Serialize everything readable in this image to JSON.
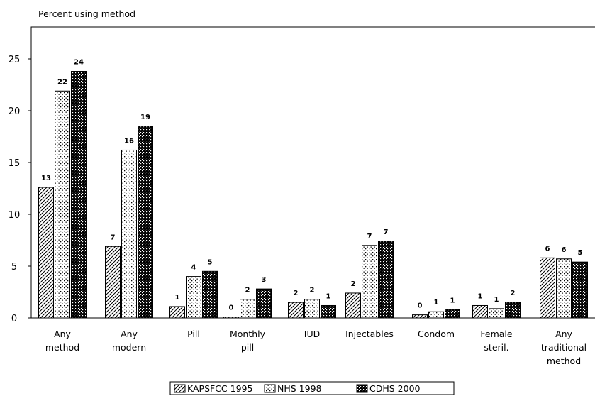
{
  "chart_data": {
    "type": "bar",
    "ylabel": "Percent using method",
    "ylim": [
      0,
      27
    ],
    "yticks": [
      0,
      5,
      10,
      15,
      20,
      25
    ],
    "grid": false,
    "legend_position": "bottom-center",
    "categories": [
      [
        "Any",
        "method"
      ],
      [
        "Any",
        "modern"
      ],
      [
        "Pill"
      ],
      [
        "Monthly",
        "pill"
      ],
      [
        "IUD"
      ],
      [
        "Injectables"
      ],
      [
        "Condom"
      ],
      [
        "Female",
        "steril."
      ],
      [
        "Any",
        "traditional",
        "method"
      ]
    ],
    "series": [
      {
        "name": "KAPSFCC 1995",
        "pattern": "diagonal-hatch",
        "values": [
          12.6,
          6.9,
          1.1,
          0.1,
          1.5,
          2.4,
          0.3,
          1.2,
          5.8
        ],
        "labels": [
          "13",
          "7",
          "1",
          "0",
          "2",
          "2",
          "0",
          "1",
          "6"
        ]
      },
      {
        "name": "NHS 1998",
        "pattern": "dotted",
        "values": [
          21.9,
          16.2,
          4.0,
          1.8,
          1.8,
          7.0,
          0.6,
          0.9,
          5.7
        ],
        "labels": [
          "22",
          "16",
          "4",
          "2",
          "2",
          "7",
          "1",
          "1",
          "6"
        ]
      },
      {
        "name": "CDHS 2000",
        "pattern": "dense-dots",
        "values": [
          23.8,
          18.5,
          4.5,
          2.8,
          1.2,
          7.4,
          0.8,
          1.5,
          5.4
        ],
        "labels": [
          "24",
          "19",
          "5",
          "3",
          "1",
          "7",
          "1",
          "2",
          "5"
        ]
      }
    ]
  }
}
